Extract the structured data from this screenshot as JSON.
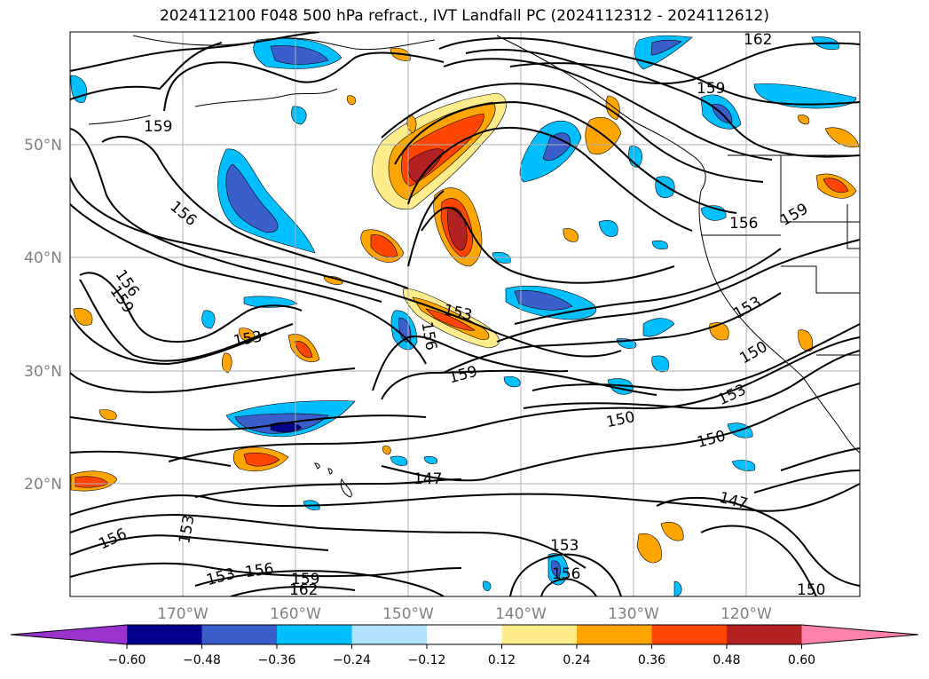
{
  "title": "2024112100 F048 500 hPa refract., IVT Landfall PC (2024112312 - 2024112612)",
  "lon_ticks": [
    "170°W",
    "160°W",
    "150°W",
    "140°W",
    "130°W",
    "120°W"
  ],
  "lat_ticks": [
    "50°N",
    "40°N",
    "30°N",
    "20°N"
  ],
  "colorbar": {
    "levels": [
      "−0.60",
      "−0.48",
      "−0.36",
      "−0.24",
      "−0.12",
      "0.12",
      "0.24",
      "0.36",
      "0.48",
      "0.60"
    ],
    "colors": [
      "#9a32cd",
      "#00008b",
      "#3a5fcd",
      "#00bfff",
      "#b0e2ff",
      "#ffffff",
      "#ffec8b",
      "#ffa500",
      "#ff4500",
      "#b22222",
      "#ff82ab"
    ]
  },
  "contour_labels": [
    "162",
    "159",
    "159",
    "156",
    "156",
    "159",
    "159",
    "156",
    "153",
    "153",
    "156",
    "159",
    "153",
    "150",
    "153",
    "150",
    "150",
    "147",
    "147",
    "156",
    "153",
    "153",
    "156",
    "159",
    "162",
    "153",
    "156",
    "150"
  ]
}
